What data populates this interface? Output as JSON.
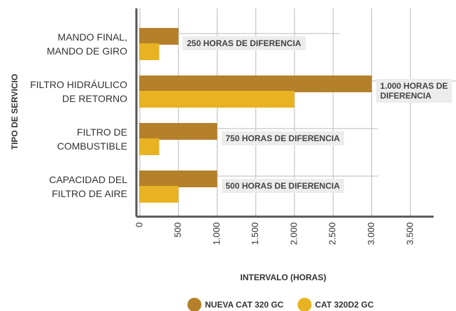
{
  "chart_data": {
    "type": "bar",
    "orientation": "horizontal",
    "xlabel": "INTERVALO (HORAS)",
    "ylabel": "TIPO DE SERVICIO",
    "categories": [
      "MANDO FINAL,\nMANDO DE GIRO",
      "FILTRO HIDRÁULICO\nDE RETORNO",
      "FILTRO DE\nCOMBUSTIBLE",
      "CAPACIDAD DEL\nFILTRO DE AIRE"
    ],
    "series": [
      {
        "name": "NUEVA CAT 320 GC",
        "color": "#b5802a",
        "values": [
          500,
          3000,
          1000,
          1000
        ]
      },
      {
        "name": "CAT 320D2 GC",
        "color": "#e8b222",
        "values": [
          250,
          2000,
          250,
          500
        ]
      }
    ],
    "annotations": [
      "250 HORAS DE DIFERENCIA",
      "1.000 HORAS DE\nDIFERENCIA",
      "750 HORAS DE DIFERENCIA",
      "500 HORAS DE DIFERENCIA"
    ],
    "xlim": [
      -45,
      3800
    ],
    "xticks": [
      0,
      500,
      {
        "value": 1000,
        "label": "1.000"
      },
      {
        "value": 1500,
        "label": "1.500"
      },
      {
        "value": 2000,
        "label": "2.000"
      },
      {
        "value": 2500,
        "label": "2.500"
      },
      {
        "value": 3000,
        "label": "3.000"
      },
      {
        "value": 3500,
        "label": "3.500"
      }
    ],
    "grid": true,
    "legend": "bottom"
  }
}
